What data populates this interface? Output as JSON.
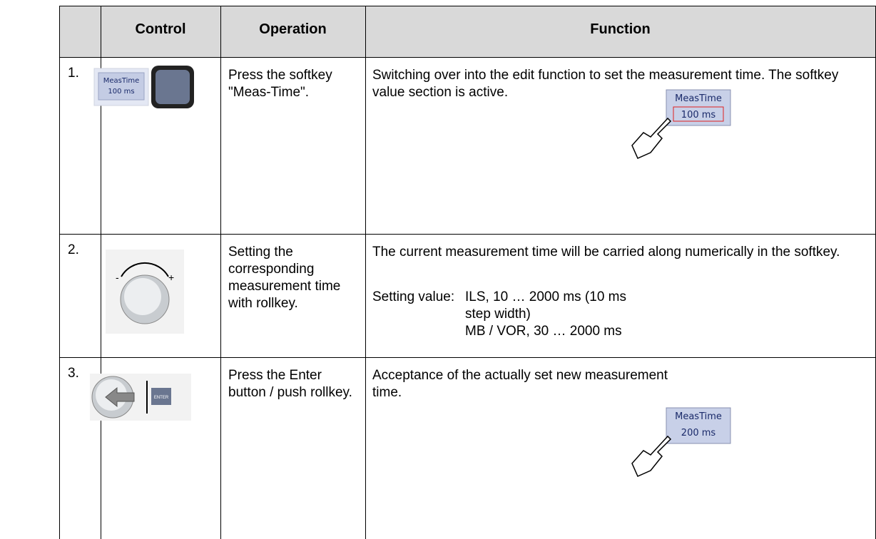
{
  "table": {
    "header": [
      "Control",
      "Operation",
      "Function"
    ],
    "rows": [
      {
        "number": "1.",
        "control": {
          "softkey_label": "MeasTime",
          "softkey_value": "100 ms"
        },
        "operation": "Press the softkey \"Meas-Time\".",
        "function": {
          "text": "Switching over into the edit function to set the measurement time. The softkey value section is active.",
          "softkey_label": "MeasTime",
          "softkey_value": "100 ms"
        }
      },
      {
        "number": "2.",
        "operation": "Setting the corresponding measurement time with rollkey.",
        "function": {
          "text": "The current measurement time will be car­ried along numerically in the softkey.",
          "setting_label": "Setting value:",
          "setting_values": [
            "ILS, 10 … 2000 ms (10 ms step width)",
            "MB / VOR, 30 … 2000 ms"
          ]
        }
      },
      {
        "number": "3.",
        "control": {
          "key_label": "ENTER"
        },
        "operation": "Press the Enter button / push rollkey.",
        "function": {
          "text": "Acceptance of the actually set new meas­urement time.",
          "softkey_label": "MeasTime",
          "softkey_value": "200 ms"
        }
      }
    ]
  }
}
